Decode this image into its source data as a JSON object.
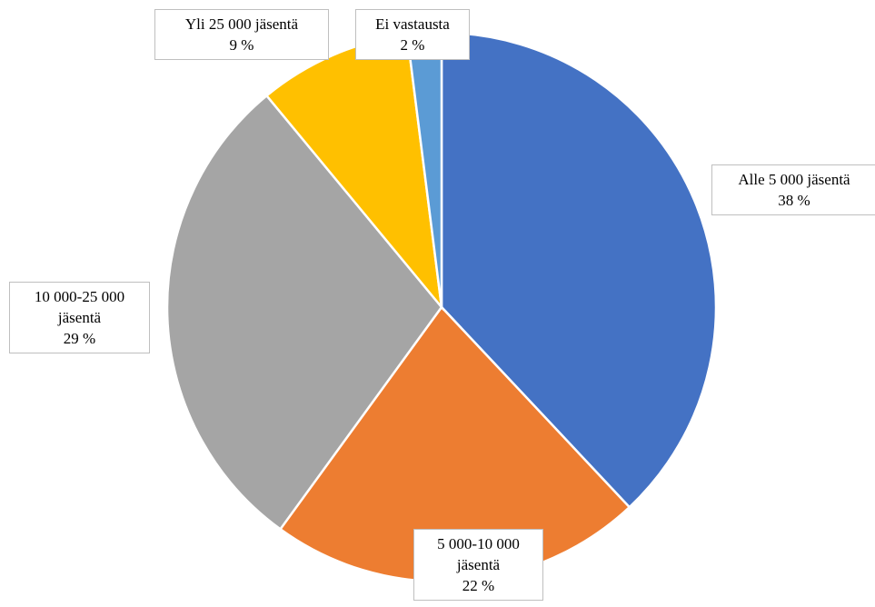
{
  "chart_data": {
    "type": "pie",
    "categories": [
      "Alle 5 000 jäsentä",
      "5 000-10 000 jäsentä",
      "10 000-25 000 jäsentä",
      "Yli 25 000 jäsentä",
      "Ei vastausta"
    ],
    "values": [
      38,
      22,
      29,
      9,
      2
    ],
    "value_labels": [
      "38 %",
      "22 %",
      "29 %",
      "9 %",
      "2 %"
    ],
    "colors": [
      "#4472c4",
      "#ed7d31",
      "#a5a5a5",
      "#ffc000",
      "#5b9bd5"
    ]
  }
}
